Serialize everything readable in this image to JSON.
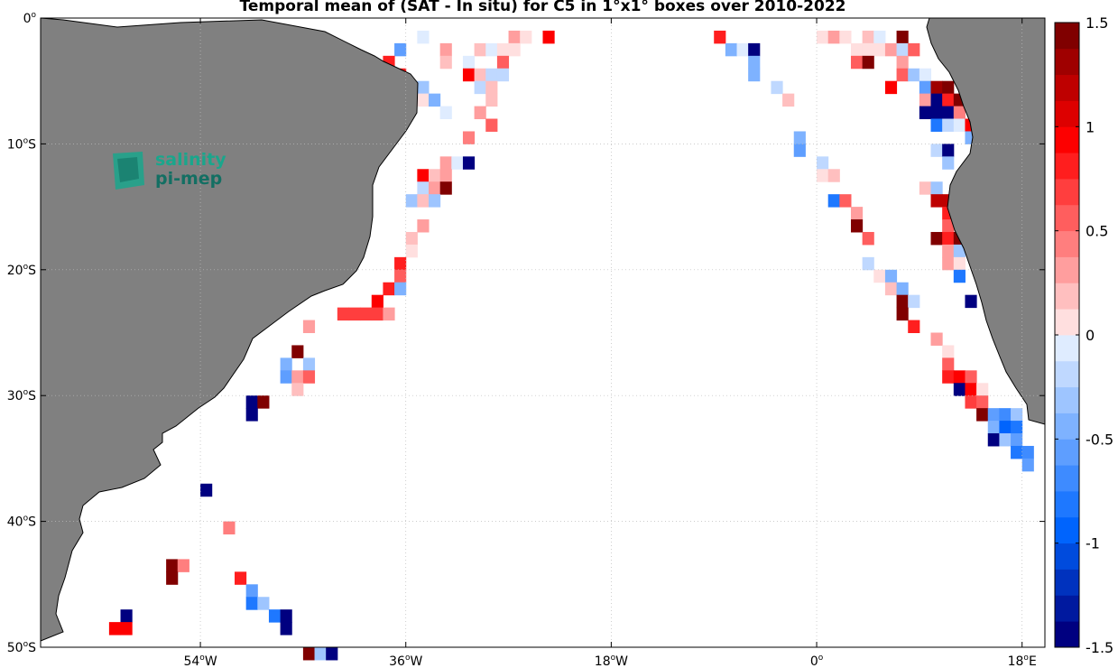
{
  "title": "Temporal mean of (SAT - In situ) for C5 in 1°x1° boxes over 2010-2022",
  "logo": {
    "line1": "salinity",
    "line2": "pi-mep"
  },
  "chart_data": {
    "type": "heatmap",
    "title": "Temporal mean of (SAT - In situ) for C5 in 1°x1° boxes over 2010-2022",
    "lon_range": [
      -68,
      20
    ],
    "lat_range": [
      -50,
      0
    ],
    "x_ticks": [
      {
        "value": -54,
        "num": "54",
        "hemi": "W"
      },
      {
        "value": -36,
        "num": "36",
        "hemi": "W"
      },
      {
        "value": -18,
        "num": "18",
        "hemi": "W"
      },
      {
        "value": 0,
        "num": "0",
        "hemi": ""
      },
      {
        "value": 18,
        "num": "18",
        "hemi": "E"
      }
    ],
    "y_ticks": [
      {
        "value": 0,
        "num": "0",
        "hemi": ""
      },
      {
        "value": -10,
        "num": "10",
        "hemi": "S"
      },
      {
        "value": -20,
        "num": "20",
        "hemi": "S"
      },
      {
        "value": -30,
        "num": "30",
        "hemi": "S"
      },
      {
        "value": -40,
        "num": "40",
        "hemi": "S"
      },
      {
        "value": -50,
        "num": "50",
        "hemi": "S"
      }
    ],
    "grid": true,
    "colorbar": {
      "range": [
        -1.5,
        1.5
      ],
      "levels": 24,
      "ticks": [
        {
          "value": 1.5,
          "label": "1.5"
        },
        {
          "value": 1,
          "label": "1"
        },
        {
          "value": 0.5,
          "label": "0.5"
        },
        {
          "value": 0,
          "label": "0"
        },
        {
          "value": -0.5,
          "label": "-0.5"
        },
        {
          "value": -1,
          "label": "-1"
        },
        {
          "value": -1.5,
          "label": "-1.5"
        }
      ]
    },
    "land_color": "#808080",
    "cells": [
      [
        -35,
        -1,
        -0.1
      ],
      [
        -27,
        -1,
        0.3
      ],
      [
        -26,
        -1,
        0.1
      ],
      [
        -24,
        -1,
        0.9
      ],
      [
        -37,
        -2,
        -0.6
      ],
      [
        -33,
        -2,
        0.3
      ],
      [
        -30,
        -2,
        0.2
      ],
      [
        -29,
        -2,
        -0.1
      ],
      [
        -28,
        -2,
        0.1
      ],
      [
        -27,
        -2,
        0.1
      ],
      [
        -38,
        -3,
        0.8
      ],
      [
        -33,
        -3,
        0.2
      ],
      [
        -31,
        -3,
        -0.1
      ],
      [
        -28,
        -3,
        0.6
      ],
      [
        -37,
        -4,
        0.8
      ],
      [
        -31,
        -4,
        0.9
      ],
      [
        -30,
        -4,
        0.2
      ],
      [
        -29,
        -4,
        -0.2
      ],
      [
        -28,
        -4,
        -0.2
      ],
      [
        -36,
        -5,
        -0.2
      ],
      [
        -35,
        -5,
        -0.3
      ],
      [
        -30,
        -5,
        -0.2
      ],
      [
        -29,
        -5,
        0.2
      ],
      [
        -35,
        -6,
        0.1
      ],
      [
        -34,
        -6,
        -0.4
      ],
      [
        -29,
        -6,
        0.2
      ],
      [
        -33,
        -7,
        -0.1
      ],
      [
        -30,
        -7,
        0.3
      ],
      [
        -29,
        -8,
        0.6
      ],
      [
        -31,
        -9,
        0.4
      ],
      [
        -33,
        -11,
        0.3
      ],
      [
        -32,
        -11,
        -0.1
      ],
      [
        -31,
        -11,
        -1.5
      ],
      [
        -35,
        -12,
        0.9
      ],
      [
        -34,
        -12,
        0.2
      ],
      [
        -33,
        -12,
        0.3
      ],
      [
        -35,
        -13,
        -0.2
      ],
      [
        -34,
        -13,
        0.3
      ],
      [
        -33,
        -13,
        1.5
      ],
      [
        -36,
        -14,
        -0.3
      ],
      [
        -35,
        -14,
        0.2
      ],
      [
        -34,
        -14,
        -0.3
      ],
      [
        -35,
        -16,
        0.3
      ],
      [
        -36,
        -17,
        0.2
      ],
      [
        -36,
        -18,
        0.1
      ],
      [
        -37,
        -19,
        0.8
      ],
      [
        -37,
        -20,
        0.6
      ],
      [
        -38,
        -21,
        0.8
      ],
      [
        -37,
        -21,
        -0.4
      ],
      [
        -39,
        -22,
        0.9
      ],
      [
        -42,
        -23,
        0.7
      ],
      [
        -41,
        -23,
        0.7
      ],
      [
        -40,
        -23,
        0.7
      ],
      [
        -39,
        -23,
        0.7
      ],
      [
        -38,
        -23,
        0.3
      ],
      [
        -45,
        -24,
        0.3
      ],
      [
        -46,
        -26,
        1.5
      ],
      [
        -47,
        -27,
        -0.5
      ],
      [
        -45,
        -27,
        -0.3
      ],
      [
        -47,
        -28,
        -0.6
      ],
      [
        -46,
        -28,
        0.3
      ],
      [
        -45,
        -28,
        0.5
      ],
      [
        -46,
        -29,
        0.2
      ],
      [
        -50,
        -30,
        -1.5
      ],
      [
        -49,
        -30,
        1.4
      ],
      [
        -50,
        -31,
        -1.5
      ],
      [
        -54,
        -37,
        -1.5
      ],
      [
        -52,
        -40,
        0.4
      ],
      [
        -57,
        -43,
        1.5
      ],
      [
        -56,
        -43,
        0.4
      ],
      [
        -57,
        -44,
        1.5
      ],
      [
        -51,
        -44,
        0.8
      ],
      [
        -50,
        -45,
        -0.6
      ],
      [
        -50,
        -46,
        -0.8
      ],
      [
        -49,
        -46,
        -0.3
      ],
      [
        -48,
        -47,
        -0.8
      ],
      [
        -47,
        -47,
        -1.5
      ],
      [
        -61,
        -47,
        -1.5
      ],
      [
        -47,
        -48,
        -1.5
      ],
      [
        -62,
        -48,
        0.9
      ],
      [
        -61,
        -48,
        0.9
      ],
      [
        -45,
        -50,
        1.5
      ],
      [
        -44,
        -50,
        -0.3
      ],
      [
        -43,
        -50,
        -1.5
      ],
      [
        -9,
        -1,
        0.8
      ],
      [
        0,
        -1,
        0.1
      ],
      [
        1,
        -1,
        0.3
      ],
      [
        2,
        -1,
        0.1
      ],
      [
        4,
        -1,
        0.2
      ],
      [
        5,
        -1,
        -0.1
      ],
      [
        7,
        -1,
        1.5
      ],
      [
        -8,
        -2,
        -0.4
      ],
      [
        -7,
        -2,
        -0.1
      ],
      [
        -6,
        -2,
        -1.5
      ],
      [
        3,
        -2,
        0.1
      ],
      [
        4,
        -2,
        0.1
      ],
      [
        5,
        -2,
        0.1
      ],
      [
        6,
        -2,
        0.3
      ],
      [
        7,
        -2,
        -0.2
      ],
      [
        8,
        -2,
        0.6
      ],
      [
        -6,
        -3,
        -0.4
      ],
      [
        3,
        -3,
        0.6
      ],
      [
        4,
        -3,
        1.5
      ],
      [
        7,
        -3,
        0.3
      ],
      [
        -6,
        -4,
        -0.4
      ],
      [
        7,
        -4,
        0.6
      ],
      [
        8,
        -4,
        -0.3
      ],
      [
        9,
        -4,
        -0.1
      ],
      [
        6,
        -5,
        0.9
      ],
      [
        9,
        -5,
        -0.6
      ],
      [
        10,
        -5,
        1.3
      ],
      [
        11,
        -5,
        1.5
      ],
      [
        -4,
        -5,
        -0.2
      ],
      [
        -3,
        -6,
        0.2
      ],
      [
        9,
        -6,
        0.3
      ],
      [
        10,
        -6,
        -1.5
      ],
      [
        11,
        -6,
        0.8
      ],
      [
        12,
        -6,
        1.5
      ],
      [
        9,
        -7,
        -1.5
      ],
      [
        10,
        -7,
        -1.5
      ],
      [
        11,
        -7,
        -1.5
      ],
      [
        12,
        -7,
        0.4
      ],
      [
        10,
        -8,
        -0.8
      ],
      [
        11,
        -8,
        -0.2
      ],
      [
        12,
        -8,
        -0.1
      ],
      [
        13,
        -8,
        0.9
      ],
      [
        -2,
        -9,
        -0.4
      ],
      [
        13,
        -9,
        -0.5
      ],
      [
        -2,
        -10,
        -0.6
      ],
      [
        10,
        -10,
        -0.2
      ],
      [
        11,
        -10,
        -1.5
      ],
      [
        0,
        -11,
        -0.2
      ],
      [
        11,
        -11,
        -0.3
      ],
      [
        0,
        -12,
        0.1
      ],
      [
        1,
        -12,
        0.2
      ],
      [
        9,
        -13,
        0.2
      ],
      [
        10,
        -13,
        -0.3
      ],
      [
        1,
        -14,
        -0.8
      ],
      [
        2,
        -14,
        0.6
      ],
      [
        10,
        -14,
        1.2
      ],
      [
        11,
        -14,
        1.2
      ],
      [
        3,
        -15,
        0.3
      ],
      [
        11,
        -15,
        0.8
      ],
      [
        3,
        -16,
        1.5
      ],
      [
        11,
        -16,
        0.5
      ],
      [
        4,
        -17,
        0.6
      ],
      [
        10,
        -17,
        1.5
      ],
      [
        11,
        -17,
        0.8
      ],
      [
        12,
        -17,
        1.5
      ],
      [
        11,
        -18,
        0.3
      ],
      [
        12,
        -18,
        -0.3
      ],
      [
        4,
        -19,
        -0.2
      ],
      [
        11,
        -19,
        0.3
      ],
      [
        12,
        -19,
        0.1
      ],
      [
        5,
        -20,
        0.1
      ],
      [
        6,
        -20,
        -0.4
      ],
      [
        12,
        -20,
        -0.8
      ],
      [
        6,
        -21,
        0.2
      ],
      [
        7,
        -21,
        -0.5
      ],
      [
        7,
        -22,
        1.5
      ],
      [
        8,
        -22,
        -0.2
      ],
      [
        7,
        -23,
        1.5
      ],
      [
        8,
        -24,
        0.8
      ],
      [
        13,
        -22,
        -1.5
      ],
      [
        10,
        -25,
        0.3
      ],
      [
        11,
        -26,
        0.1
      ],
      [
        11,
        -27,
        0.5
      ],
      [
        11,
        -28,
        0.8
      ],
      [
        12,
        -28,
        0.9
      ],
      [
        13,
        -28,
        0.6
      ],
      [
        12,
        -29,
        -1.5
      ],
      [
        13,
        -29,
        0.9
      ],
      [
        14,
        -29,
        0.1
      ],
      [
        13,
        -30,
        0.7
      ],
      [
        14,
        -30,
        0.5
      ],
      [
        14,
        -31,
        1.5
      ],
      [
        15,
        -31,
        -0.6
      ],
      [
        16,
        -31,
        -0.7
      ],
      [
        17,
        -31,
        -0.3
      ],
      [
        15,
        -32,
        -0.4
      ],
      [
        16,
        -32,
        -1.0
      ],
      [
        17,
        -32,
        -0.8
      ],
      [
        15,
        -33,
        -1.4
      ],
      [
        16,
        -33,
        -0.3
      ],
      [
        17,
        -33,
        -0.6
      ],
      [
        17,
        -34,
        -0.8
      ],
      [
        18,
        -34,
        -0.7
      ],
      [
        18,
        -35,
        -0.6
      ]
    ]
  }
}
